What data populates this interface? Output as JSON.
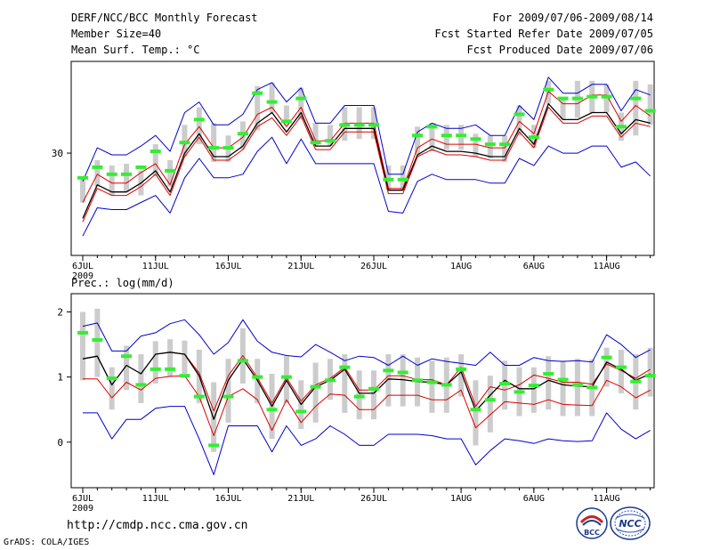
{
  "header": {
    "title": "DERF/NCC/BCC Monthly Forecast",
    "member_size": "Member Size=40",
    "variable": "Mean Surf. Temp.: °C",
    "period": "For 2009/07/06-2009/08/14",
    "started": "Fcst Started Refer Date 2009/07/05",
    "produced": "Fcst Produced Date 2009/07/06"
  },
  "footer": {
    "url": "http://cmdp.ncc.cma.gov.cn",
    "credit": "GrADS: COLA/IGES",
    "logo_bcc": "BCC",
    "logo_ncc": "NCC"
  },
  "colors": {
    "outer": "#0000cc",
    "inner": "#dd0000",
    "mean": "#000000",
    "box": "#cccccc",
    "median": "#33ee33"
  },
  "chart_data": [
    {
      "type": "line",
      "title": "Mean Surf. Temp.: °C",
      "x_tick_labels": [
        "6JUL",
        "11JUL",
        "16JUL",
        "21JUL",
        "26JUL",
        "1AUG",
        "6AUG",
        "11AUG"
      ],
      "x_tick_days": [
        0,
        5,
        10,
        15,
        20,
        26,
        31,
        36
      ],
      "year_label": "2009",
      "days": 40,
      "ylim": [
        24.2,
        35.2
      ],
      "y_ticks": [
        30
      ],
      "series": [
        {
          "name": "upper",
          "values": [
            28.4,
            30.3,
            29.9,
            29.9,
            30.4,
            31.0,
            30.1,
            32.3,
            32.9,
            31.6,
            31.6,
            32.2,
            33.6,
            34.0,
            32.9,
            33.7,
            31.7,
            31.7,
            32.7,
            32.7,
            32.7,
            28.8,
            28.8,
            31.2,
            31.7,
            31.4,
            31.4,
            31.6,
            31.0,
            31.0,
            32.7,
            31.9,
            34.3,
            33.4,
            33.4,
            33.9,
            33.9,
            32.4,
            33.6,
            33.3
          ]
        },
        {
          "name": "upper_inner",
          "values": [
            27.2,
            28.8,
            28.3,
            28.3,
            28.9,
            29.4,
            28.2,
            30.5,
            31.5,
            30.3,
            30.3,
            30.9,
            32.2,
            32.6,
            31.5,
            32.6,
            30.7,
            30.7,
            31.7,
            31.7,
            31.7,
            28.0,
            28.0,
            30.3,
            30.8,
            30.5,
            30.5,
            30.5,
            30.3,
            30.3,
            31.8,
            31.1,
            33.5,
            32.8,
            32.8,
            33.3,
            33.3,
            31.8,
            32.7,
            32.1
          ]
        },
        {
          "name": "mean",
          "values": [
            26.3,
            28.2,
            27.8,
            27.8,
            28.3,
            29.0,
            27.8,
            30.0,
            31.1,
            29.8,
            29.8,
            30.4,
            31.7,
            32.3,
            31.2,
            32.3,
            30.4,
            30.4,
            31.4,
            31.4,
            31.4,
            27.9,
            27.9,
            29.9,
            30.4,
            30.1,
            30.1,
            30.0,
            29.8,
            29.8,
            31.4,
            30.5,
            32.8,
            31.9,
            31.9,
            32.3,
            32.3,
            31.1,
            31.9,
            31.7
          ]
        },
        {
          "name": "lower_inner",
          "values": [
            26.1,
            28.0,
            27.6,
            27.6,
            28.1,
            28.8,
            27.6,
            29.8,
            30.9,
            29.6,
            29.6,
            30.2,
            31.5,
            32.0,
            31.0,
            32.1,
            30.2,
            30.2,
            31.2,
            31.2,
            31.2,
            27.7,
            27.7,
            29.8,
            30.2,
            29.9,
            29.9,
            29.8,
            29.6,
            29.6,
            31.2,
            30.3,
            32.6,
            31.7,
            31.7,
            32.1,
            32.1,
            30.9,
            31.7,
            31.5
          ]
        },
        {
          "name": "lower",
          "values": [
            25.3,
            26.9,
            26.8,
            26.8,
            27.2,
            27.6,
            26.6,
            28.6,
            29.7,
            28.6,
            28.6,
            28.8,
            30.1,
            30.9,
            29.4,
            30.8,
            29.4,
            29.4,
            29.4,
            29.4,
            29.4,
            26.7,
            26.6,
            28.4,
            28.8,
            28.5,
            28.5,
            28.5,
            28.3,
            28.3,
            29.7,
            29.3,
            30.4,
            30.0,
            30.0,
            30.4,
            30.4,
            29.2,
            29.5,
            28.7
          ]
        }
      ],
      "box_min": [
        27.2,
        28.1,
        27.6,
        27.8,
        27.6,
        28.7,
        28.1,
        29.8,
        30.5,
        29.5,
        29.5,
        30.2,
        31.3,
        32.3,
        31.6,
        31.9,
        30.4,
        30.4,
        30.7,
        30.8,
        30.8,
        27.9,
        27.9,
        29.9,
        30.1,
        30.2,
        30.2,
        29.8,
        29.7,
        29.5,
        31.0,
        30.3,
        32.8,
        31.9,
        32.0,
        32.3,
        32.3,
        30.7,
        31.0,
        31.6
      ],
      "box_max": [
        28.6,
        29.6,
        29.3,
        29.4,
        29.0,
        30.5,
        29.6,
        31.6,
        32.6,
        31.7,
        31.0,
        31.8,
        33.8,
        34.0,
        32.7,
        33.7,
        31.7,
        31.6,
        32.6,
        32.6,
        32.6,
        29.3,
        29.3,
        31.5,
        31.7,
        31.6,
        31.6,
        31.1,
        31.0,
        31.0,
        32.7,
        31.6,
        34.1,
        33.1,
        34.1,
        34.1,
        33.9,
        32.3,
        34.1,
        33.9
      ],
      "median": [
        28.6,
        29.2,
        28.8,
        28.8,
        29.2,
        30.1,
        29.0,
        30.6,
        31.9,
        30.3,
        30.3,
        31.1,
        33.4,
        32.9,
        31.8,
        33.1,
        30.6,
        30.7,
        31.6,
        31.6,
        31.6,
        28.5,
        28.5,
        31.0,
        31.5,
        31.0,
        31.0,
        30.8,
        30.5,
        30.5,
        32.2,
        30.9,
        33.6,
        33.1,
        33.1,
        33.2,
        33.2,
        31.5,
        33.1,
        32.4
      ]
    },
    {
      "type": "line",
      "title": "Prec.: log(mm/d)",
      "x_tick_labels": [
        "6JUL",
        "11JUL",
        "16JUL",
        "21JUL",
        "26JUL",
        "1AUG",
        "6AUG",
        "11AUG"
      ],
      "x_tick_days": [
        0,
        5,
        10,
        15,
        20,
        26,
        31,
        36
      ],
      "year_label": "2009",
      "days": 40,
      "ylim": [
        -0.7,
        2.28
      ],
      "y_ticks": [
        0,
        1,
        2
      ],
      "series": [
        {
          "name": "upper",
          "values": [
            1.78,
            1.83,
            1.4,
            1.4,
            1.63,
            1.68,
            1.82,
            1.88,
            1.65,
            1.35,
            1.53,
            1.88,
            1.55,
            1.38,
            1.33,
            1.31,
            1.5,
            1.38,
            1.25,
            1.32,
            1.3,
            1.18,
            1.32,
            1.18,
            1.28,
            1.24,
            1.21,
            1.18,
            1.38,
            1.18,
            1.18,
            1.3,
            1.25,
            1.24,
            1.25,
            1.23,
            1.65,
            1.5,
            1.3,
            1.42
          ]
        },
        {
          "name": "upper_inner",
          "values": [
            1.28,
            1.32,
            0.88,
            1.18,
            1.05,
            1.35,
            1.38,
            1.35,
            1.06,
            0.48,
            1.02,
            1.33,
            0.99,
            0.6,
            0.99,
            0.63,
            0.88,
            0.98,
            1.15,
            0.8,
            0.8,
            1.02,
            1.02,
            0.96,
            0.96,
            0.88,
            1.15,
            0.55,
            0.85,
            0.8,
            0.88,
            1.03,
            0.98,
            0.92,
            0.92,
            0.89,
            1.2,
            1.1,
            0.98,
            1.12
          ]
        },
        {
          "name": "mean",
          "values": [
            1.28,
            1.32,
            0.88,
            1.18,
            1.05,
            1.35,
            1.38,
            1.35,
            1.02,
            0.35,
            0.95,
            1.28,
            0.95,
            0.55,
            0.95,
            0.58,
            0.85,
            0.95,
            1.12,
            0.75,
            0.75,
            0.97,
            0.96,
            0.93,
            0.92,
            0.88,
            1.08,
            0.48,
            0.72,
            0.95,
            0.82,
            0.82,
            0.95,
            0.88,
            0.86,
            0.85,
            1.23,
            1.12,
            0.95,
            1.05
          ]
        },
        {
          "name": "lower_inner",
          "values": [
            0.97,
            0.97,
            0.68,
            0.92,
            0.8,
            0.98,
            1.01,
            1.02,
            0.7,
            0.1,
            0.7,
            0.82,
            0.65,
            0.18,
            0.65,
            0.3,
            0.55,
            0.74,
            0.72,
            0.5,
            0.5,
            0.72,
            0.72,
            0.72,
            0.65,
            0.65,
            0.8,
            0.22,
            0.42,
            0.62,
            0.6,
            0.58,
            0.65,
            0.58,
            0.57,
            0.56,
            0.95,
            0.85,
            0.68,
            0.8
          ]
        },
        {
          "name": "lower",
          "values": [
            0.45,
            0.45,
            0.05,
            0.35,
            0.35,
            0.52,
            0.55,
            0.55,
            0.05,
            -0.5,
            0.25,
            0.25,
            0.25,
            -0.15,
            0.25,
            -0.05,
            0.05,
            0.25,
            0.12,
            -0.05,
            -0.05,
            0.12,
            0.12,
            0.12,
            0.1,
            0.05,
            0.05,
            -0.35,
            -0.13,
            0.05,
            0.02,
            -0.02,
            0.05,
            0.02,
            0.01,
            0.02,
            0.45,
            0.2,
            0.05,
            0.18
          ]
        }
      ],
      "box_min": [
        0.95,
        1.0,
        0.5,
        0.8,
        0.6,
        0.9,
        1.0,
        1.05,
        0.6,
        -0.15,
        0.3,
        0.9,
        0.6,
        0.05,
        0.6,
        0.2,
        0.3,
        0.65,
        0.45,
        0.35,
        0.35,
        0.55,
        0.55,
        0.55,
        0.45,
        0.45,
        0.7,
        -0.05,
        0.15,
        0.5,
        0.4,
        0.45,
        0.5,
        0.4,
        0.4,
        0.4,
        0.85,
        0.75,
        0.5,
        0.7
      ],
      "box_max": [
        2.0,
        2.05,
        1.15,
        1.48,
        1.35,
        1.55,
        1.58,
        1.56,
        1.42,
        0.92,
        1.28,
        1.75,
        1.28,
        1.05,
        1.32,
        0.95,
        1.22,
        1.28,
        1.35,
        1.1,
        1.1,
        1.35,
        1.35,
        1.3,
        1.25,
        1.3,
        1.35,
        0.95,
        1.02,
        1.25,
        1.15,
        1.15,
        1.32,
        1.25,
        1.28,
        1.27,
        1.45,
        1.42,
        1.35,
        1.45
      ],
      "median": [
        1.68,
        1.57,
        0.98,
        1.32,
        0.88,
        1.12,
        1.12,
        1.02,
        0.7,
        -0.05,
        0.7,
        1.25,
        1.0,
        0.5,
        1.0,
        0.47,
        0.85,
        0.95,
        1.15,
        0.7,
        0.82,
        1.1,
        1.07,
        0.95,
        0.92,
        0.88,
        1.12,
        0.5,
        0.65,
        0.9,
        0.77,
        0.87,
        1.05,
        0.96,
        0.88,
        0.84,
        1.3,
        1.15,
        0.93,
        1.02
      ]
    }
  ]
}
